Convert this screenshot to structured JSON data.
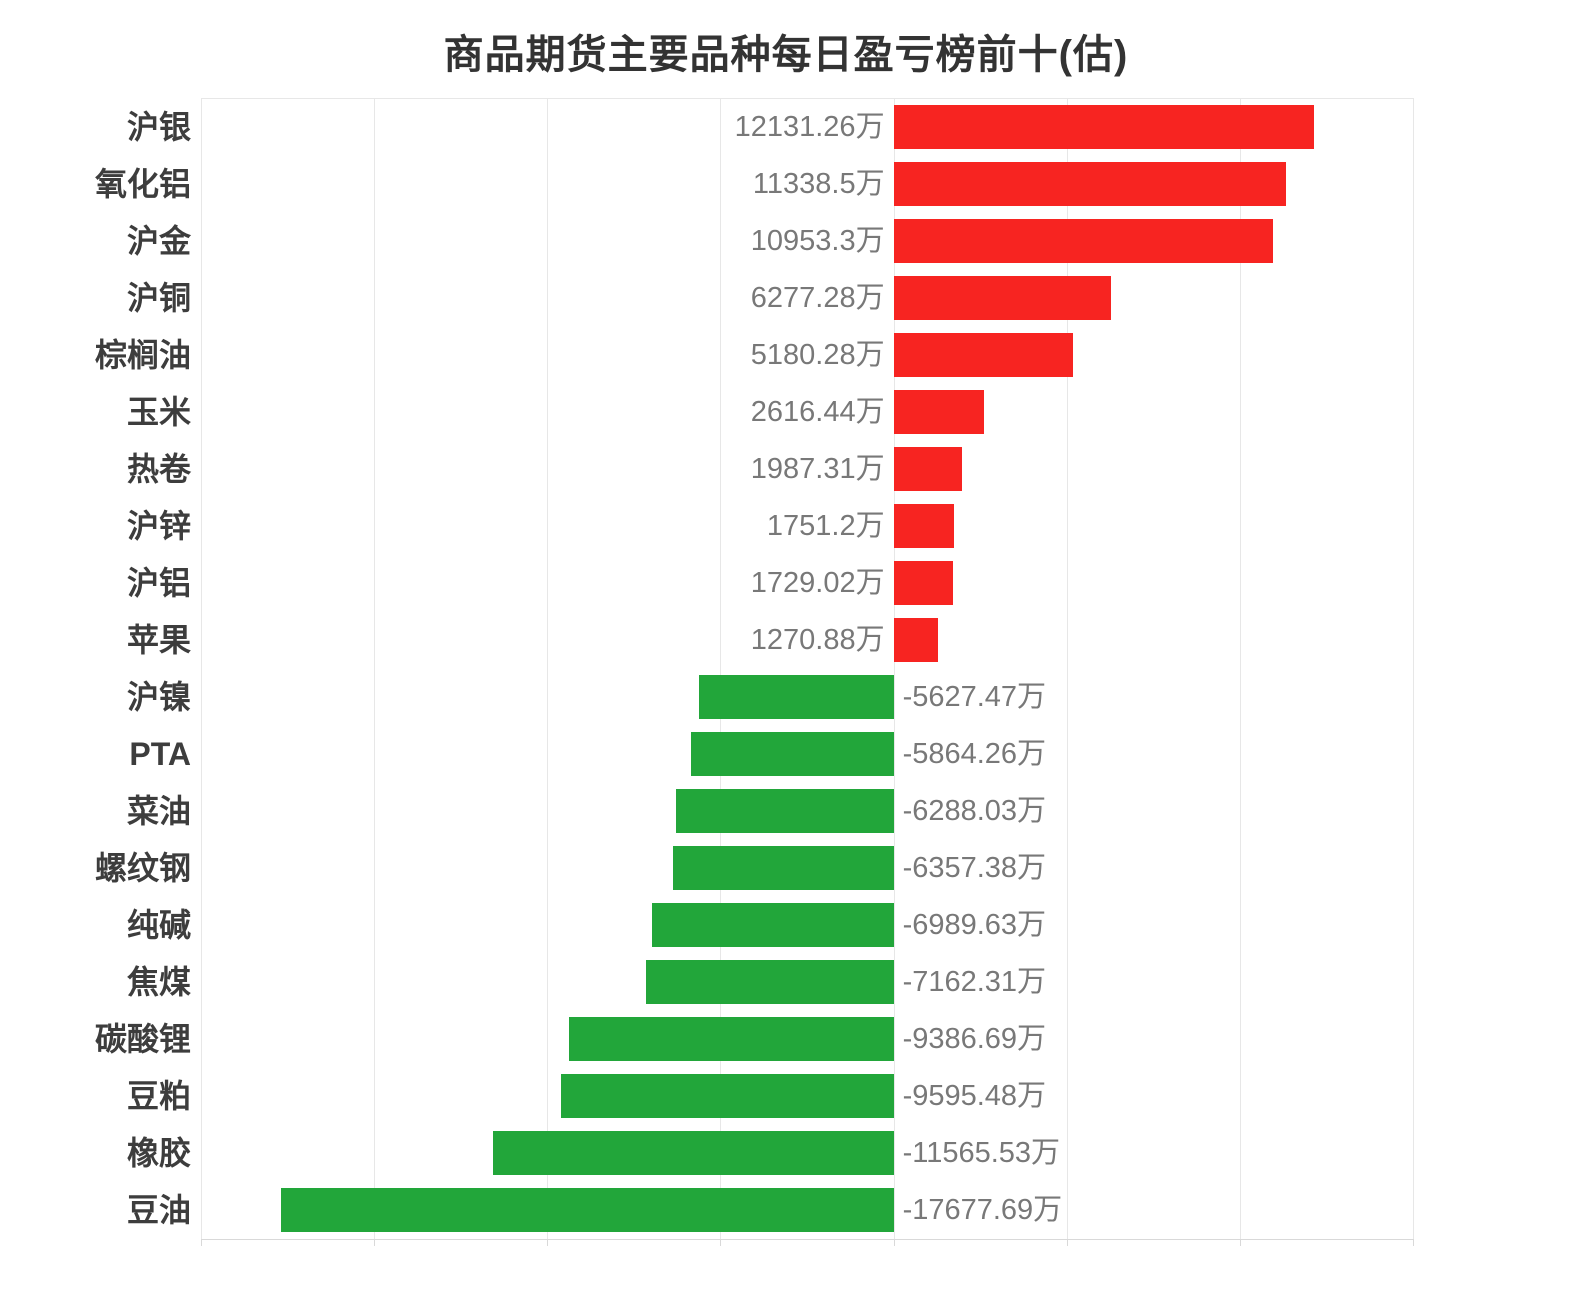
{
  "chart_data": {
    "type": "bar",
    "orientation": "horizontal",
    "title": "商品期货主要品种每日盈亏榜前十(估)",
    "unit": "万",
    "categories": [
      "沪银",
      "氧化铝",
      "沪金",
      "沪铜",
      "棕榈油",
      "玉米",
      "热卷",
      "沪锌",
      "沪铝",
      "苹果",
      "沪镍",
      "PTA",
      "菜油",
      "螺纹钢",
      "纯碱",
      "焦煤",
      "碳酸锂",
      "豆粕",
      "橡胶",
      "豆油"
    ],
    "values": [
      12131.26,
      11338.5,
      10953.3,
      6277.28,
      5180.28,
      2616.44,
      1987.31,
      1751.2,
      1729.02,
      1270.88,
      -5627.47,
      -5864.26,
      -6288.03,
      -6357.38,
      -6989.63,
      -7162.31,
      -9386.69,
      -9595.48,
      -11565.53,
      -17677.69
    ],
    "value_labels": [
      "12131.26万",
      "11338.5万",
      "10953.3万",
      "6277.28万",
      "5180.28万",
      "2616.44万",
      "1987.31万",
      "1751.2万",
      "1729.02万",
      "1270.88万",
      "-5627.47万",
      "-5864.26万",
      "-6288.03万",
      "-6357.38万",
      "-6989.63万",
      "-7162.31万",
      "-9386.69万",
      "-9595.48万",
      "-11565.53万",
      "-17677.69万"
    ],
    "xlim": [
      -20000,
      15000
    ],
    "grid_step": 5000,
    "grid": true,
    "legend": "none",
    "x_tick_labels_visible": false,
    "colors": {
      "positive_bar": "#f72421",
      "negative_bar": "#22a63a",
      "title_text": "#333333",
      "category_text": "#3d3d3d",
      "value_text": "#787878",
      "gridline": "#e7e7e7",
      "axis_line": "#d9d9d9",
      "background": "#ffffff"
    }
  }
}
